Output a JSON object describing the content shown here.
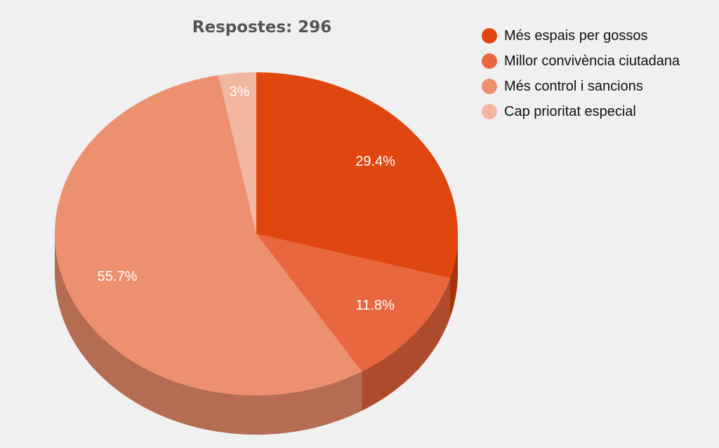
{
  "chart_data": {
    "type": "pie",
    "style": "3d",
    "title": "Respostes: 296",
    "slices": [
      {
        "label": "Més espais per gossos",
        "value": 29.4,
        "value_label": "29.4%",
        "color": "#e0460f",
        "shade": "#a8330a"
      },
      {
        "label": "Millor convivència ciutadana",
        "value": 11.8,
        "value_label": "11.8%",
        "color": "#e8673e",
        "shade": "#ae4b2c"
      },
      {
        "label": "Més control i sancions",
        "value": 55.7,
        "value_label": "55.7%",
        "color": "#ec9070",
        "shade": "#b46c52"
      },
      {
        "label": "Cap prioritat especial",
        "value": 3.0,
        "value_label": "3%",
        "color": "#f2b7a1",
        "shade": "#b88a79"
      }
    ],
    "legend_position": "right"
  }
}
